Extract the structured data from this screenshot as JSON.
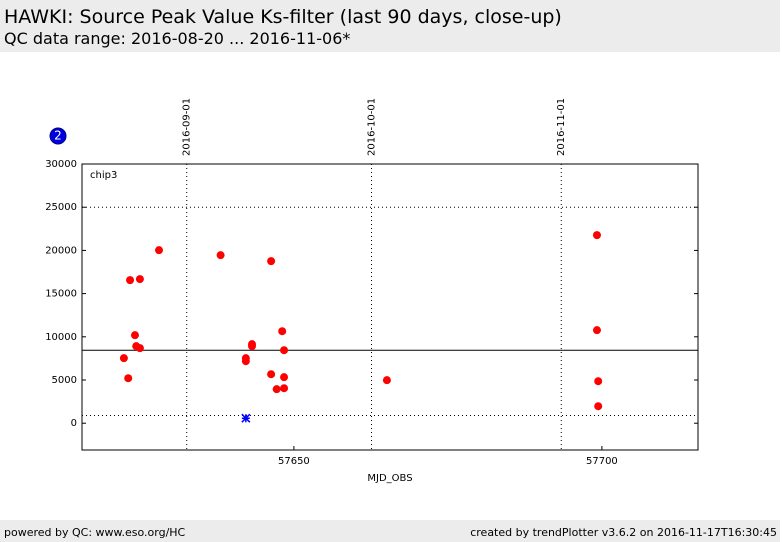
{
  "header": {
    "title": "HAWKI: Source Peak Value Ks-filter (last 90 days, close-up)",
    "subtitle": "QC data range: 2016-08-20 ... 2016-11-06*"
  },
  "footer": {
    "left": "powered by QC: www.eso.org/HC",
    "right": "created by trendPlotter v3.6.2 on 2016-11-17T16:30:45"
  },
  "badge": "2",
  "chart_data": {
    "type": "scatter",
    "panel_label": "chip3",
    "x_label": "MJD_OBS",
    "xlim": [
      57615.6,
      57715.6
    ],
    "ylim": [
      -3100,
      30000
    ],
    "xticks": [
      57650,
      57700
    ],
    "yticks": [
      0,
      5000,
      10000,
      15000,
      20000,
      25000,
      30000
    ],
    "top_xticks": [
      {
        "value": 57632.6,
        "label": "2016-09-01"
      },
      {
        "value": 57662.6,
        "label": "2016-10-01"
      },
      {
        "value": 57693.4,
        "label": "2016-11-01"
      }
    ],
    "reference_line": 8450,
    "threshold_lines": [
      25000,
      900
    ],
    "series": [
      {
        "color": "#ff0000",
        "marker": "circle",
        "x": [
          57622.4,
          57623.1,
          57623.4,
          57624.2,
          57624.4,
          57625.0,
          57625.0,
          57628.1,
          57638.1,
          57642.2,
          57642.2,
          57643.2,
          57643.2,
          57646.3,
          57646.3,
          57647.2,
          57648.1,
          57648.4,
          57648.4,
          57648.4,
          57665.1,
          57699.2,
          57699.2,
          57699.4,
          57699.4
        ],
        "values": [
          7530,
          5210,
          16560,
          10190,
          8920,
          8690,
          16680,
          20030,
          19450,
          7530,
          7180,
          9150,
          8920,
          18760,
          5670,
          3940,
          10650,
          8450,
          5330,
          4050,
          4980,
          21770,
          10770,
          4860,
          1970
        ]
      },
      {
        "color": "#0000ff",
        "marker": "star",
        "x": [
          57642.2
        ],
        "values": [
          580
        ]
      }
    ]
  }
}
